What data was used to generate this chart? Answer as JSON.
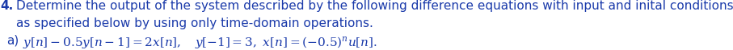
{
  "line1_bold": "4.",
  "line1_normal": " Determine the output of the system described by the following difference equations with input and inital conditions",
  "line2": "as specified below by using only time-domain operations.",
  "line3_label": "a)",
  "line3_math": "$y[n] - 0.5y[n-1] = 2x[n],\\quad y[-1] = 3,\\, x[n] = (-0.5)^n u[n].$",
  "font_size": 11.0,
  "text_color": "#1a3aaa",
  "bg_color": "#ffffff"
}
